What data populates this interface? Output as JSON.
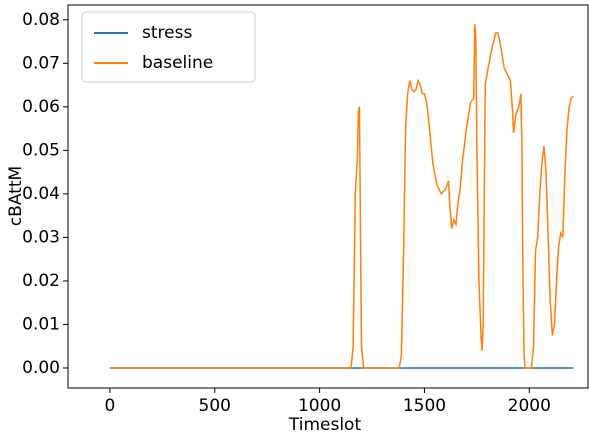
{
  "chart_data": {
    "type": "line",
    "xlabel": "Timeslot",
    "ylabel": "cBAttM",
    "xlim": [
      -200,
      2280
    ],
    "ylim": [
      -0.0046,
      0.0834
    ],
    "xticks": [
      0,
      500,
      1000,
      1500,
      2000
    ],
    "yticks": [
      {
        "value": 0,
        "label": "0.00"
      },
      0.01,
      0.02,
      0.03,
      0.04,
      0.05,
      0.06,
      0.07,
      0.08
    ],
    "legend": "upper left",
    "series": [
      {
        "name": "stress",
        "color": "#1f77b4",
        "x": [
          0,
          2210
        ],
        "values": [
          0,
          0
        ]
      },
      {
        "name": "baseline",
        "color": "#ff7f0e",
        "x": [
          0,
          1150,
          1160,
          1170,
          1180,
          1185,
          1190,
          1195,
          1200,
          1210,
          1380,
          1390,
          1400,
          1410,
          1420,
          1430,
          1440,
          1450,
          1460,
          1470,
          1480,
          1490,
          1500,
          1510,
          1520,
          1540,
          1560,
          1580,
          1600,
          1615,
          1620,
          1630,
          1640,
          1650,
          1660,
          1670,
          1680,
          1700,
          1720,
          1735,
          1740,
          1745,
          1750,
          1760,
          1770,
          1775,
          1780,
          1790,
          1800,
          1820,
          1840,
          1850,
          1860,
          1880,
          1900,
          1910,
          1920,
          1925,
          1935,
          1950,
          1960,
          1965,
          1970,
          1975,
          1980,
          2010,
          2020,
          2030,
          2040,
          2050,
          2060,
          2070,
          2080,
          2090,
          2100,
          2110,
          2120,
          2130,
          2140,
          2150,
          2160,
          2170,
          2180,
          2190,
          2200,
          2210
        ],
        "values": [
          0,
          0,
          0.005,
          0.04,
          0.048,
          0.059,
          0.06,
          0.03,
          0.005,
          0,
          0,
          0.003,
          0.025,
          0.055,
          0.063,
          0.066,
          0.064,
          0.0635,
          0.064,
          0.066,
          0.065,
          0.063,
          0.063,
          0.061,
          0.057,
          0.047,
          0.042,
          0.04,
          0.041,
          0.043,
          0.038,
          0.032,
          0.034,
          0.033,
          0.038,
          0.041,
          0.047,
          0.055,
          0.061,
          0.062,
          0.079,
          0.076,
          0.05,
          0.02,
          0.007,
          0.004,
          0.01,
          0.065,
          0.068,
          0.073,
          0.077,
          0.077,
          0.075,
          0.069,
          0.067,
          0.066,
          0.059,
          0.054,
          0.058,
          0.06,
          0.063,
          0.05,
          0.02,
          0.003,
          0,
          0,
          0.005,
          0.027,
          0.03,
          0.04,
          0.047,
          0.051,
          0.045,
          0.03,
          0.015,
          0.0075,
          0.01,
          0.02,
          0.028,
          0.031,
          0.03,
          0.045,
          0.055,
          0.06,
          0.062,
          0.0625
        ]
      }
    ]
  }
}
